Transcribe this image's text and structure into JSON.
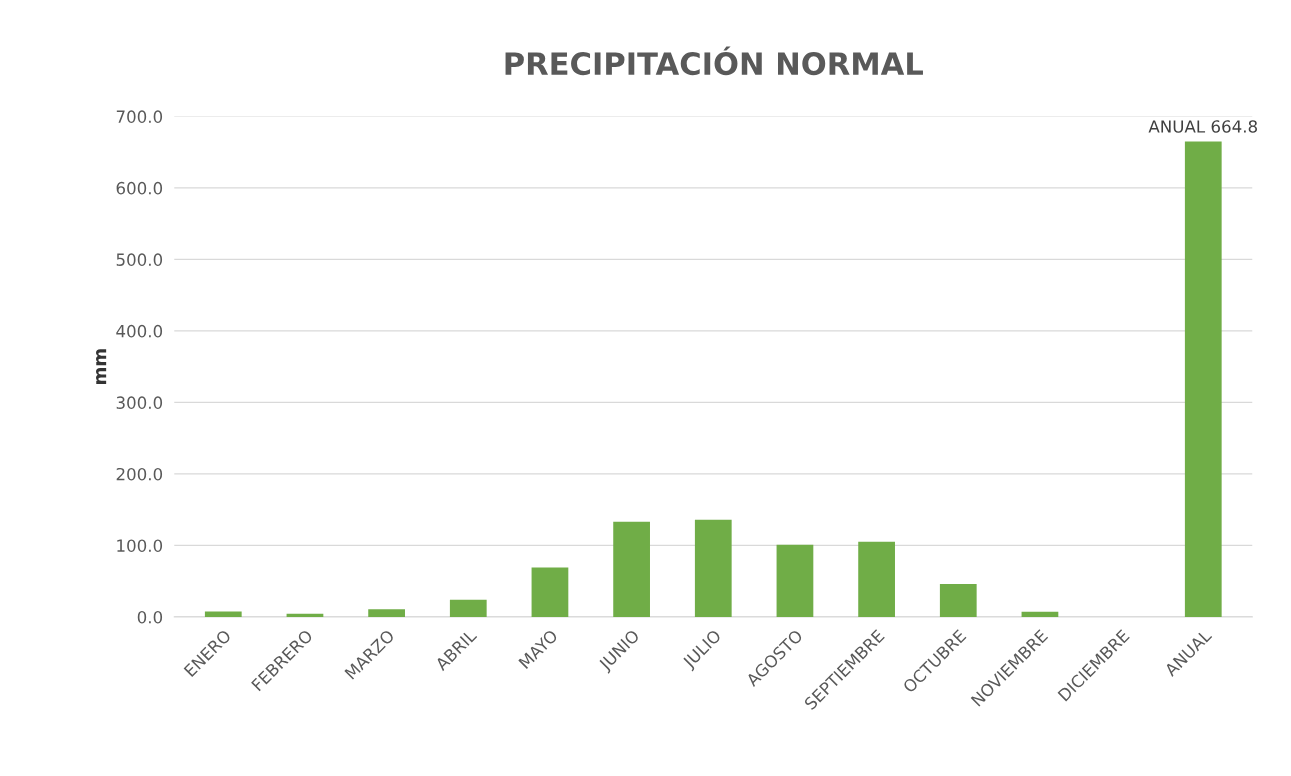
{
  "chart_data": {
    "type": "bar",
    "title": "PRECIPITACIÓN NORMAL",
    "ylabel": "mm",
    "categories": [
      "ENERO",
      "FEBRERO",
      "MARZO",
      "ABRIL",
      "MAYO",
      "JUNIO",
      "JULIO",
      "AGOSTO",
      "SEPTIEMBRE",
      "OCTUBRE",
      "NOVIEMBRE",
      "DICIEMBRE",
      "ANUAL"
    ],
    "values": [
      7.6,
      4.3,
      10.9,
      23.9,
      69,
      133,
      136,
      101,
      105,
      46,
      7.3,
      0,
      664.8
    ],
    "value_labels": [
      null,
      null,
      null,
      null,
      null,
      null,
      null,
      null,
      null,
      null,
      null,
      null,
      "ANUAL 664.8"
    ],
    "color": "#70ad47",
    "ylim": [
      0,
      700
    ],
    "yticks": [
      {
        "value": 0,
        "label": "0.0"
      },
      {
        "value": 100,
        "label": "100.0"
      },
      {
        "value": 200,
        "label": "200.0"
      },
      {
        "value": 300,
        "label": "300.0"
      },
      {
        "value": 400,
        "label": "400.0"
      },
      {
        "value": 500,
        "label": "500.0"
      },
      {
        "value": 600,
        "label": "600.0"
      },
      {
        "value": 700,
        "label": "700.0"
      }
    ],
    "grid": "y",
    "legend": false
  }
}
